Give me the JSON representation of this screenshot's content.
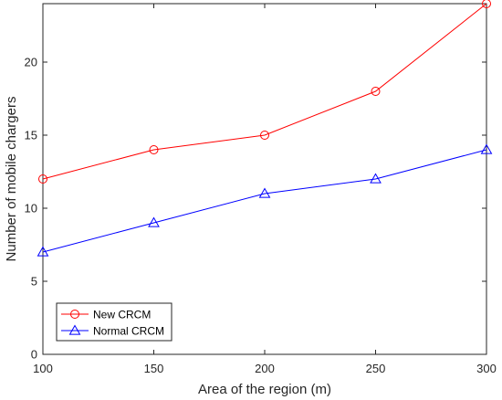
{
  "chart_data": {
    "type": "line",
    "title": "",
    "xlabel": "Area of the region (m)",
    "ylabel": "Number of mobile chargers",
    "x": [
      100,
      150,
      200,
      250,
      300
    ],
    "xlim": [
      100,
      300
    ],
    "ylim": [
      0,
      24
    ],
    "xticks": [
      "100",
      "150",
      "200",
      "250",
      "300"
    ],
    "yticks": [
      "0",
      "5",
      "10",
      "15",
      "20"
    ],
    "grid": false,
    "legend_position": "bottom-left",
    "series": [
      {
        "name": "New CRCM",
        "values": [
          12,
          14,
          15,
          18,
          24
        ],
        "color": "#ff0000",
        "marker": "circle"
      },
      {
        "name": "Normal CRCM",
        "values": [
          7,
          9,
          11,
          12,
          14
        ],
        "color": "#0000ff",
        "marker": "triangle"
      }
    ]
  }
}
